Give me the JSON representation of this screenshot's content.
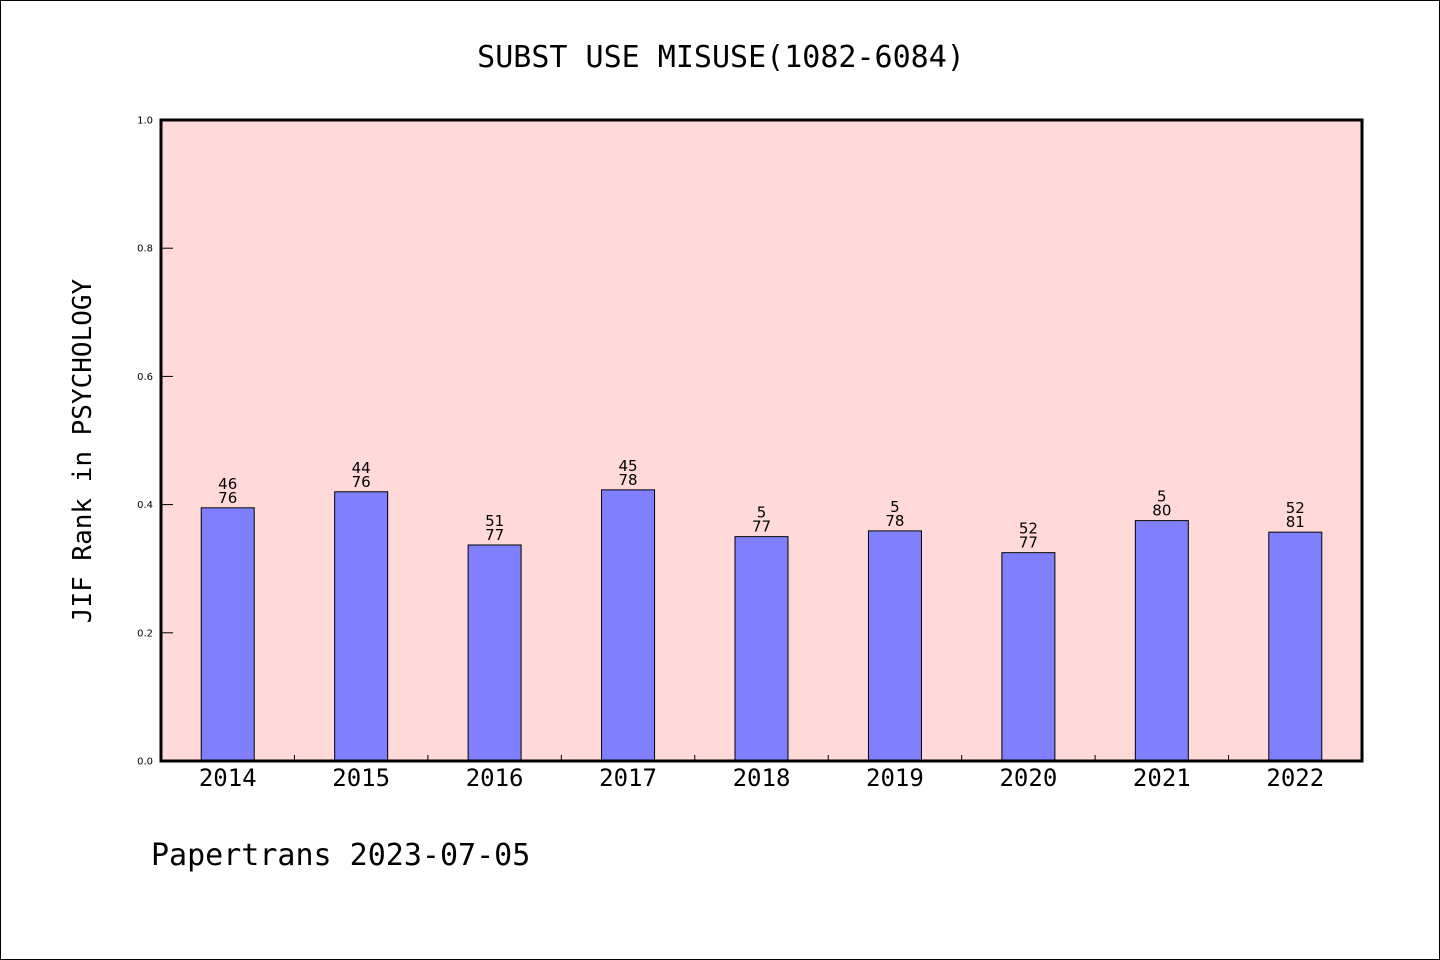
{
  "chart_data": {
    "type": "bar",
    "title": "SUBST USE MISUSE(1082-6084)",
    "xlabel": "",
    "ylabel": "JIF Rank in PSYCHOLOGY",
    "ylim": [
      0,
      1.0
    ],
    "yticks": [
      "0.0",
      "0.2",
      "0.4",
      "0.6",
      "0.8",
      "1.0"
    ],
    "categories": [
      "2014",
      "2015",
      "2016",
      "2017",
      "2018",
      "2019",
      "2020",
      "2021",
      "2022"
    ],
    "values": [
      0.395,
      0.42,
      0.337,
      0.423,
      0.35,
      0.359,
      0.325,
      0.375,
      0.357
    ],
    "labels_top": [
      "46",
      "44",
      "51",
      "45",
      "5",
      "5",
      "52",
      "5",
      "52"
    ],
    "labels_bottom": [
      "76",
      "76",
      "77",
      "78",
      "77",
      "78",
      "77",
      "80",
      "81"
    ],
    "grid": false,
    "legend": "none"
  },
  "footer": "Papertrans 2023-07-05",
  "colors": {
    "plot_background": "#ffdad8",
    "bar_fill": "#8080ff",
    "bar_stroke": "#000000",
    "axis": "#000000"
  }
}
